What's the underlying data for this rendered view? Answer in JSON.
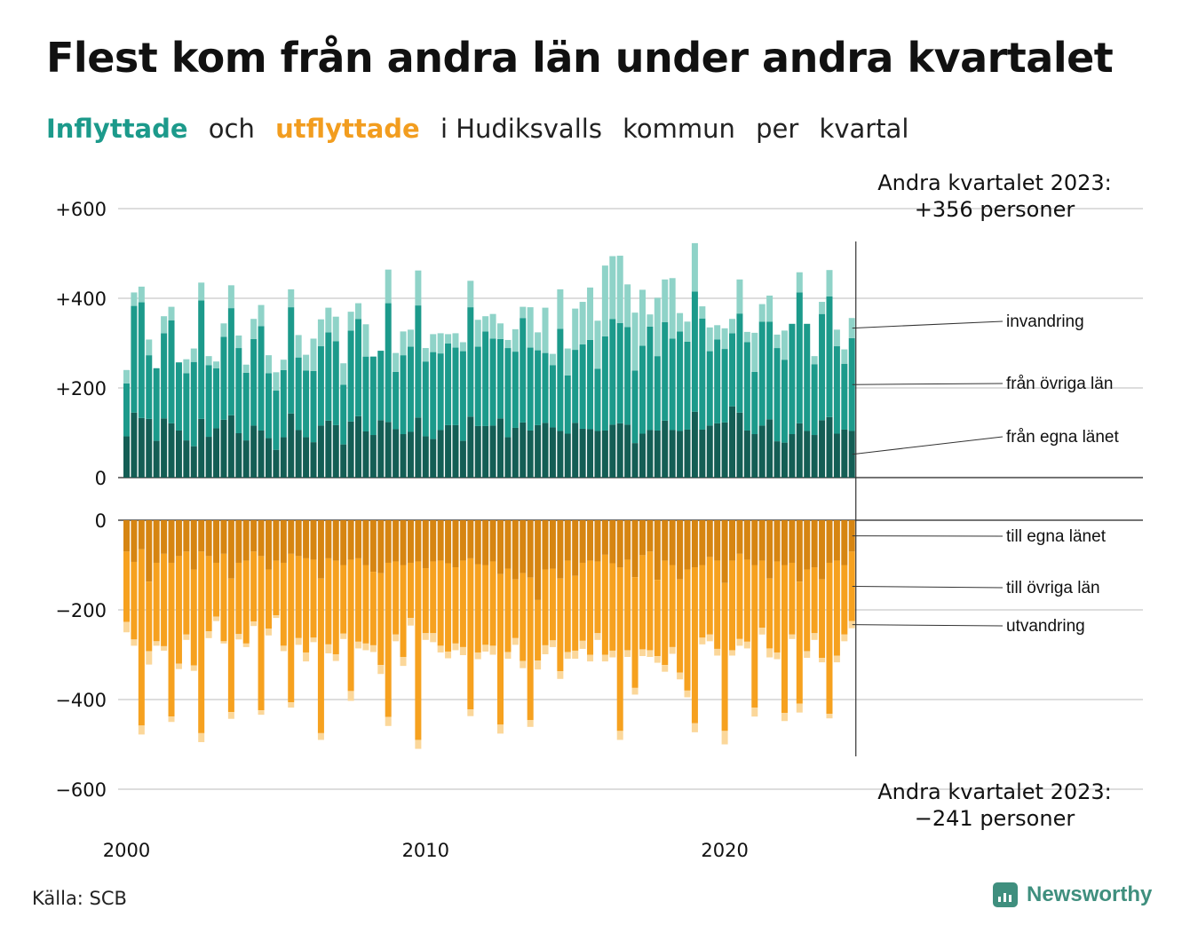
{
  "header": {
    "title": "Flest kom från andra län under andra kvartalet",
    "subtitle_parts": [
      "Inflyttade",
      "och",
      "utflyttade",
      "i Hudiksvalls",
      "kommun",
      "per",
      "kvartal"
    ]
  },
  "footer": {
    "source": "Källa: SCB",
    "brand": "Newsworthy"
  },
  "colors": {
    "in_own": "#145e55",
    "in_other": "#1c9a8b",
    "in_immigration": "#8fd3c8",
    "out_own": "#d68512",
    "out_other": "#f6a11f",
    "out_emigration": "#fbd79a",
    "grid": "#dddddd"
  },
  "annotations": {
    "top_line1": "Andra kvartalet 2023:",
    "top_line2": "+356 personer",
    "bottom_line1": "Andra kvartalet 2023:",
    "bottom_line2": "−241 personer"
  },
  "chart_data": {
    "type": "bar",
    "stacked": true,
    "start_year": 2000,
    "end_period": "2023 Q2",
    "x_tick_labels": [
      "2000",
      "2010",
      "2020"
    ],
    "y_tick_labels_in": [
      "0",
      "+200",
      "+400",
      "+600"
    ],
    "y_tick_labels_out": [
      "0",
      "−200",
      "−400",
      "−600"
    ],
    "ylim_in": [
      0,
      600
    ],
    "ylim_out": [
      -600,
      0
    ],
    "grid": true,
    "series_in": [
      {
        "name": "från egna länet",
        "values": [
          92,
          145,
          133,
          131,
          82,
          132,
          121,
          105,
          83,
          70,
          131,
          91,
          110,
          129,
          139,
          99,
          83,
          116,
          105,
          88,
          62,
          90,
          143,
          106,
          90,
          79,
          116,
          127,
          117,
          74,
          125,
          137,
          103,
          95,
          128,
          124,
          108,
          97,
          102,
          134,
          92,
          86,
          106,
          117,
          117,
          82,
          136,
          115,
          115,
          116,
          132,
          90,
          111,
          123,
          105,
          117,
          122,
          112,
          104,
          98,
          122,
          109,
          108,
          104,
          105,
          118,
          121,
          118,
          77,
          98,
          106,
          105,
          127,
          106,
          104,
          107,
          147,
          107,
          116,
          121,
          123,
          159,
          145,
          105,
          97,
          116,
          130,
          81,
          78,
          97,
          121,
          104,
          95,
          128,
          135,
          98,
          107,
          104
        ]
      },
      {
        "name": "från övriga län",
        "values": [
          118,
          238,
          258,
          142,
          162,
          190,
          230,
          152,
          150,
          188,
          264,
          160,
          134,
          185,
          239,
          190,
          151,
          193,
          233,
          145,
          132,
          150,
          237,
          162,
          149,
          159,
          177,
          197,
          187,
          133,
          203,
          217,
          167,
          175,
          155,
          265,
          128,
          176,
          190,
          250,
          167,
          194,
          171,
          182,
          173,
          200,
          244,
          177,
          211,
          194,
          177,
          199,
          170,
          233,
          185,
          167,
          156,
          139,
          228,
          130,
          163,
          188,
          199,
          139,
          210,
          236,
          224,
          218,
          162,
          196,
          231,
          166,
          220,
          204,
          222,
          196,
          268,
          248,
          166,
          187,
          164,
          163,
          221,
          197,
          139,
          232,
          218,
          208,
          185,
          246,
          292,
          239,
          158,
          237,
          269,
          195,
          147,
          207
        ]
      },
      {
        "name": "invandring",
        "values": [
          30,
          30,
          35,
          35,
          0,
          38,
          30,
          0,
          31,
          30,
          40,
          20,
          15,
          30,
          51,
          28,
          18,
          45,
          47,
          40,
          41,
          23,
          40,
          50,
          35,
          72,
          60,
          55,
          55,
          48,
          42,
          35,
          72,
          0,
          0,
          75,
          42,
          53,
          38,
          78,
          30,
          40,
          45,
          21,
          32,
          20,
          59,
          60,
          34,
          55,
          35,
          18,
          50,
          25,
          90,
          40,
          101,
          25,
          88,
          60,
          92,
          95,
          117,
          107,
          158,
          140,
          150,
          95,
          129,
          125,
          27,
          130,
          95,
          135,
          41,
          45,
          108,
          27,
          53,
          32,
          46,
          32,
          76,
          23,
          87,
          39,
          58,
          30,
          65,
          0,
          45,
          0,
          18,
          27,
          59,
          37,
          32,
          45
        ]
      }
    ],
    "series_out": [
      {
        "name": "till egna länet",
        "values": [
          -70,
          -93,
          -65,
          -137,
          -95,
          -75,
          -95,
          -80,
          -70,
          -110,
          -70,
          -80,
          -95,
          -75,
          -130,
          -95,
          -90,
          -70,
          -80,
          -110,
          -90,
          -95,
          -75,
          -80,
          -85,
          -88,
          -130,
          -85,
          -90,
          -100,
          -88,
          -85,
          -100,
          -115,
          -118,
          -95,
          -92,
          -100,
          -95,
          -92,
          -107,
          -92,
          -90,
          -96,
          -105,
          -90,
          -85,
          -98,
          -100,
          -92,
          -120,
          -108,
          -132,
          -118,
          -128,
          -178,
          -110,
          -108,
          -130,
          -90,
          -124,
          -95,
          -90,
          -92,
          -77,
          -96,
          -105,
          -88,
          -127,
          -78,
          -70,
          -133,
          -90,
          -100,
          -132,
          -110,
          -105,
          -100,
          -82,
          -90,
          -140,
          -90,
          -75,
          -88,
          -100,
          -90,
          -130,
          -92,
          -100,
          -95,
          -137,
          -110,
          -105,
          -132,
          -95,
          -90,
          -100,
          -70
        ]
      },
      {
        "name": "till övriga län",
        "values": [
          -157,
          -173,
          -393,
          -155,
          -175,
          -206,
          -343,
          -240,
          -185,
          -214,
          -405,
          -168,
          -120,
          -195,
          -298,
          -159,
          -185,
          -156,
          -344,
          -132,
          -122,
          -185,
          -331,
          -183,
          -210,
          -174,
          -345,
          -192,
          -209,
          -153,
          -293,
          -186,
          -175,
          -164,
          -205,
          -344,
          -163,
          -205,
          -123,
          -398,
          -145,
          -160,
          -190,
          -197,
          -170,
          -193,
          -337,
          -197,
          -178,
          -188,
          -336,
          -186,
          -131,
          -196,
          -318,
          -135,
          -169,
          -160,
          -207,
          -204,
          -167,
          -174,
          -210,
          -160,
          -223,
          -195,
          -365,
          -202,
          -247,
          -210,
          -220,
          -170,
          -233,
          -183,
          -208,
          -270,
          -348,
          -162,
          -173,
          -197,
          -330,
          -200,
          -190,
          -183,
          -318,
          -150,
          -156,
          -203,
          -330,
          -160,
          -272,
          -182,
          -147,
          -175,
          -337,
          -212,
          -155,
          -155
        ]
      },
      {
        "name": "utvandring",
        "values": [
          -23,
          -14,
          -20,
          -30,
          -10,
          -10,
          -12,
          -12,
          -12,
          -12,
          -20,
          -15,
          -10,
          -5,
          -15,
          -12,
          -8,
          -10,
          -10,
          -15,
          -6,
          -12,
          -12,
          -15,
          -20,
          -10,
          -15,
          -20,
          -15,
          -12,
          -22,
          -15,
          -15,
          -15,
          -20,
          -20,
          -15,
          -20,
          -17,
          -20,
          -15,
          -20,
          -15,
          -15,
          -15,
          -18,
          -15,
          -15,
          -15,
          -20,
          -20,
          -15,
          -15,
          -16,
          -15,
          -20,
          -20,
          -15,
          -17,
          -15,
          -18,
          -18,
          -15,
          -15,
          -15,
          -15,
          -20,
          -15,
          -15,
          -15,
          -15,
          -15,
          -15,
          -15,
          -15,
          -15,
          -20,
          -15,
          -15,
          -15,
          -30,
          -12,
          -15,
          -15,
          -20,
          -15,
          -20,
          -15,
          -18,
          -10,
          -20,
          -15,
          -15,
          -10,
          -10,
          -15,
          -15,
          -16
        ]
      }
    ]
  }
}
